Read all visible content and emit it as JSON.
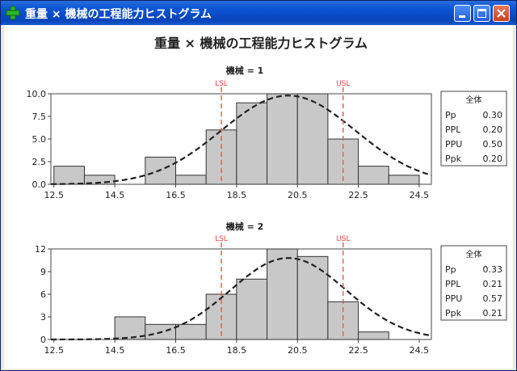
{
  "window": {
    "title": "重量 × 機械の工程能力ヒストグラム",
    "app_icon": "plus-icon",
    "buttons": {
      "minimize": "minimize-icon",
      "maximize": "maximize-icon",
      "close": "close-icon"
    }
  },
  "chart_data": {
    "type": "bar",
    "title": "重量 × 機械の工程能力ヒストグラム",
    "xlabel": "",
    "ylabel": "",
    "x_ticks": [
      12.5,
      14.5,
      16.5,
      18.5,
      20.5,
      22.5,
      24.5
    ],
    "x_tick_labels": [
      "12.5",
      "14.5",
      "16.5",
      "18.5",
      "20.5",
      "22.5",
      "24.5"
    ],
    "xlim": [
      12.4,
      24.9
    ],
    "bin_width": 1,
    "lsl": 18,
    "usl": 22,
    "lsl_label": "LSL",
    "usl_label": "USL",
    "panels": [
      {
        "label": "機械 = 1",
        "ylim": [
          0,
          10
        ],
        "y_ticks": [
          0,
          2.5,
          5,
          7.5,
          10
        ],
        "y_tick_labels": [
          "0.0",
          "2.5",
          "5.0",
          "7.5",
          "10.0"
        ],
        "bins": [
          {
            "start": 12.5,
            "count": 2
          },
          {
            "start": 13.5,
            "count": 1
          },
          {
            "start": 14.5,
            "count": 0
          },
          {
            "start": 15.5,
            "count": 3
          },
          {
            "start": 16.5,
            "count": 1
          },
          {
            "start": 17.5,
            "count": 6
          },
          {
            "start": 18.5,
            "count": 9
          },
          {
            "start": 19.5,
            "count": 10
          },
          {
            "start": 20.5,
            "count": 10
          },
          {
            "start": 21.5,
            "count": 5
          },
          {
            "start": 22.5,
            "count": 2
          },
          {
            "start": 23.5,
            "count": 1
          }
        ],
        "curve": {
          "type": "normal",
          "mean": 20.2,
          "sd": 2.2,
          "peak": 9.8
        },
        "stats": {
          "header": "全体",
          "rows": [
            {
              "label": "Pp",
              "value": "0.30"
            },
            {
              "label": "PPL",
              "value": "0.20"
            },
            {
              "label": "PPU",
              "value": "0.50"
            },
            {
              "label": "Ppk",
              "value": "0.20"
            }
          ]
        }
      },
      {
        "label": "機械 = 2",
        "ylim": [
          0,
          12
        ],
        "y_ticks": [
          0,
          3,
          6,
          9,
          12
        ],
        "y_tick_labels": [
          "0",
          "3",
          "6",
          "9",
          "12"
        ],
        "bins": [
          {
            "start": 14.5,
            "count": 3
          },
          {
            "start": 15.5,
            "count": 2
          },
          {
            "start": 16.5,
            "count": 2
          },
          {
            "start": 17.5,
            "count": 6
          },
          {
            "start": 18.5,
            "count": 8
          },
          {
            "start": 19.5,
            "count": 12
          },
          {
            "start": 20.5,
            "count": 11
          },
          {
            "start": 21.5,
            "count": 5
          },
          {
            "start": 22.5,
            "count": 1
          }
        ],
        "curve": {
          "type": "normal",
          "mean": 20.2,
          "sd": 1.9,
          "peak": 10.8
        },
        "stats": {
          "header": "全体",
          "rows": [
            {
              "label": "Pp",
              "value": "0.33"
            },
            {
              "label": "PPL",
              "value": "0.21"
            },
            {
              "label": "PPU",
              "value": "0.57"
            },
            {
              "label": "Ppk",
              "value": "0.21"
            }
          ]
        }
      }
    ]
  }
}
